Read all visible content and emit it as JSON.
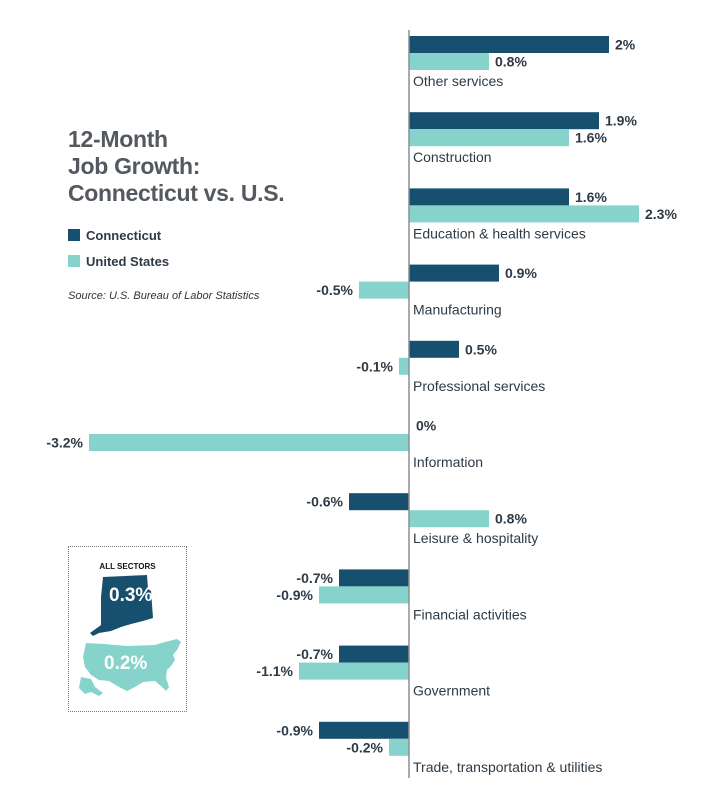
{
  "title_lines": [
    "12-Month",
    "Job Growth:",
    "Connecticut vs. U.S."
  ],
  "legend": [
    {
      "label": "Connecticut",
      "color": "#16506e"
    },
    {
      "label": "United States",
      "color": "#86d3cb"
    }
  ],
  "source": "Source: U.S. Bureau of Labor Statistics",
  "all_sectors": {
    "title": "ALL SECTORS",
    "connecticut": "0.3%",
    "united_states": "0.2%",
    "icons": [
      "connecticut-map-icon",
      "usa-map-icon"
    ]
  },
  "chart_data": {
    "type": "bar",
    "orientation": "horizontal",
    "title": "12-Month Job Growth: Connecticut vs. U.S.",
    "unit": "%",
    "categories": [
      "Other services",
      "Construction",
      "Education & health services",
      "Manufacturing",
      "Professional services",
      "Information",
      "Leisure & hospitality",
      "Financial activities",
      "Government",
      "Trade, transportation & utilities"
    ],
    "series": [
      {
        "name": "Connecticut",
        "color": "#16506e",
        "values": [
          2,
          1.9,
          1.6,
          0.9,
          0.5,
          0,
          -0.6,
          -0.7,
          -0.7,
          -0.9
        ],
        "labels": [
          "2%",
          "1.9%",
          "1.6%",
          "0.9%",
          "0.5%",
          "0%",
          "-0.6%",
          "-0.7%",
          "-0.7%",
          "-0.9%"
        ]
      },
      {
        "name": "United States",
        "color": "#86d3cb",
        "values": [
          0.8,
          1.6,
          2.3,
          -0.5,
          -0.1,
          -3.2,
          0.8,
          -0.9,
          -1.1,
          -0.2
        ],
        "labels": [
          "0.8%",
          "1.6%",
          "2.3%",
          "-0.5%",
          "-0.1%",
          "-3.2%",
          "0.8%",
          "-0.9%",
          "-1.1%",
          "-0.2%"
        ]
      }
    ],
    "xlim": [
      -3.2,
      2.3
    ],
    "grid": false,
    "legend_position": "left"
  }
}
